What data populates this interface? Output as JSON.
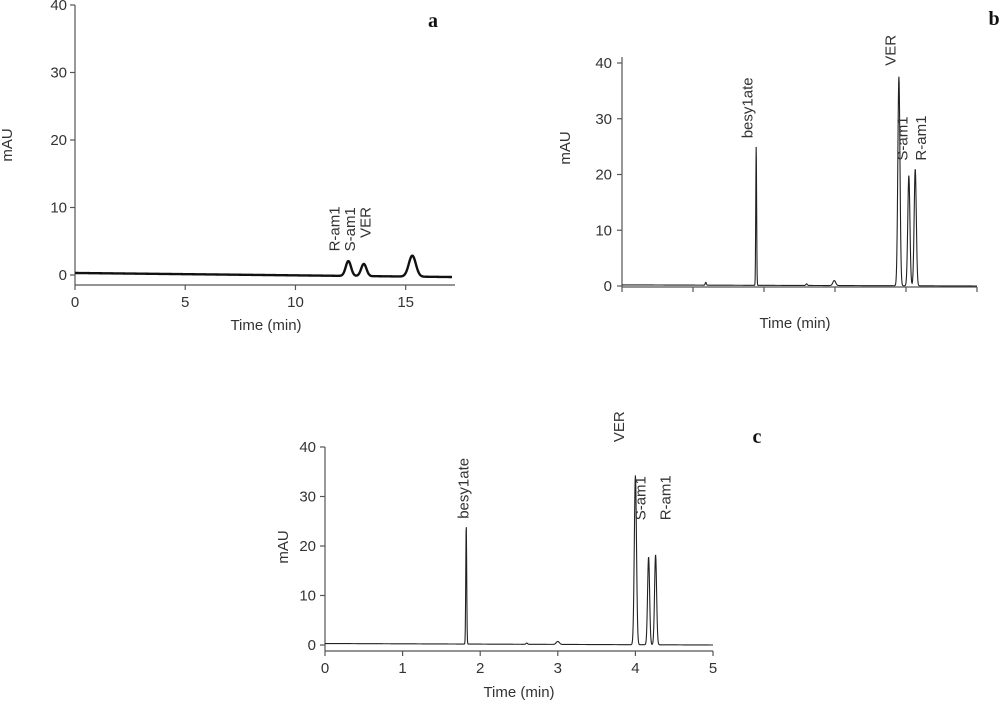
{
  "chart_data": [
    {
      "panel": "a",
      "type": "line",
      "xlabel": "Time (min)",
      "ylabel": "mAU",
      "xlim": [
        0,
        17.1
      ],
      "ylim": [
        0,
        40
      ],
      "xticks": [
        0,
        5,
        10,
        15
      ],
      "yticks": [
        0,
        10,
        20,
        30,
        40
      ],
      "x_tick_labels_shown": true,
      "baseline": 0.3,
      "baseline_end": -0.3,
      "peaks": [
        {
          "x": 12.4,
          "height": 2.2,
          "width": 0.12
        },
        {
          "x": 13.1,
          "height": 1.8,
          "width": 0.12
        },
        {
          "x": 15.3,
          "height": 3.1,
          "width": 0.16
        }
      ],
      "annotations": [
        {
          "text": "R-am1",
          "x": 12.0,
          "y": 3.5
        },
        {
          "text": "S-am1",
          "x": 12.7,
          "y": 3.5
        },
        {
          "text": "VER",
          "x": 13.4,
          "y": 5.5
        }
      ]
    },
    {
      "panel": "b",
      "type": "line",
      "xlabel": "Time (min)",
      "ylabel": "mAU",
      "xlim": [
        0,
        5
      ],
      "ylim": [
        0,
        40
      ],
      "xticks": [
        0,
        1,
        2,
        3,
        4,
        5
      ],
      "yticks": [
        0,
        10,
        20,
        30,
        40
      ],
      "x_tick_labels_shown": false,
      "baseline": 0.2,
      "baseline_end": 0.0,
      "peaks": [
        {
          "x": 1.18,
          "height": 0.5,
          "width": 0.008
        },
        {
          "x": 1.89,
          "height": 25.0,
          "width": 0.006
        },
        {
          "x": 2.6,
          "height": 0.3,
          "width": 0.01
        },
        {
          "x": 2.99,
          "height": 0.9,
          "width": 0.02
        },
        {
          "x": 3.9,
          "height": 37.5,
          "width": 0.015
        },
        {
          "x": 4.04,
          "height": 19.8,
          "width": 0.015
        },
        {
          "x": 4.13,
          "height": 21.0,
          "width": 0.015
        }
      ],
      "annotations": [
        {
          "text": "besy1ate",
          "x": 1.84,
          "y": 26.5
        },
        {
          "text": "VER",
          "x": 3.85,
          "y": 39.5
        },
        {
          "text": "S-am1",
          "x": 4.02,
          "y": 22.5
        },
        {
          "text": "R-am1",
          "x": 4.28,
          "y": 22.5
        }
      ]
    },
    {
      "panel": "c",
      "type": "line",
      "xlabel": "Time (min)",
      "ylabel": "mAU",
      "xlim": [
        0,
        5
      ],
      "ylim": [
        0,
        40
      ],
      "xticks": [
        0,
        1,
        2,
        3,
        4,
        5
      ],
      "yticks": [
        0,
        10,
        20,
        30,
        40
      ],
      "x_tick_labels_shown": true,
      "baseline": 0.3,
      "baseline_end": 0.0,
      "peaks": [
        {
          "x": 1.82,
          "height": 24.3,
          "width": 0.006
        },
        {
          "x": 2.6,
          "height": 0.25,
          "width": 0.01
        },
        {
          "x": 3.0,
          "height": 0.6,
          "width": 0.02
        },
        {
          "x": 4.0,
          "height": 34.2,
          "width": 0.014
        },
        {
          "x": 4.17,
          "height": 17.8,
          "width": 0.013
        },
        {
          "x": 4.26,
          "height": 18.2,
          "width": 0.013
        }
      ],
      "annotations": [
        {
          "text": "besy1ate",
          "x": 1.85,
          "y": 25.5
        },
        {
          "text": "VER",
          "x": 3.85,
          "y": 41.0
        },
        {
          "text": "S-am1",
          "x": 4.13,
          "y": 25.2
        },
        {
          "text": "R-am1",
          "x": 4.45,
          "y": 25.2
        }
      ]
    }
  ]
}
